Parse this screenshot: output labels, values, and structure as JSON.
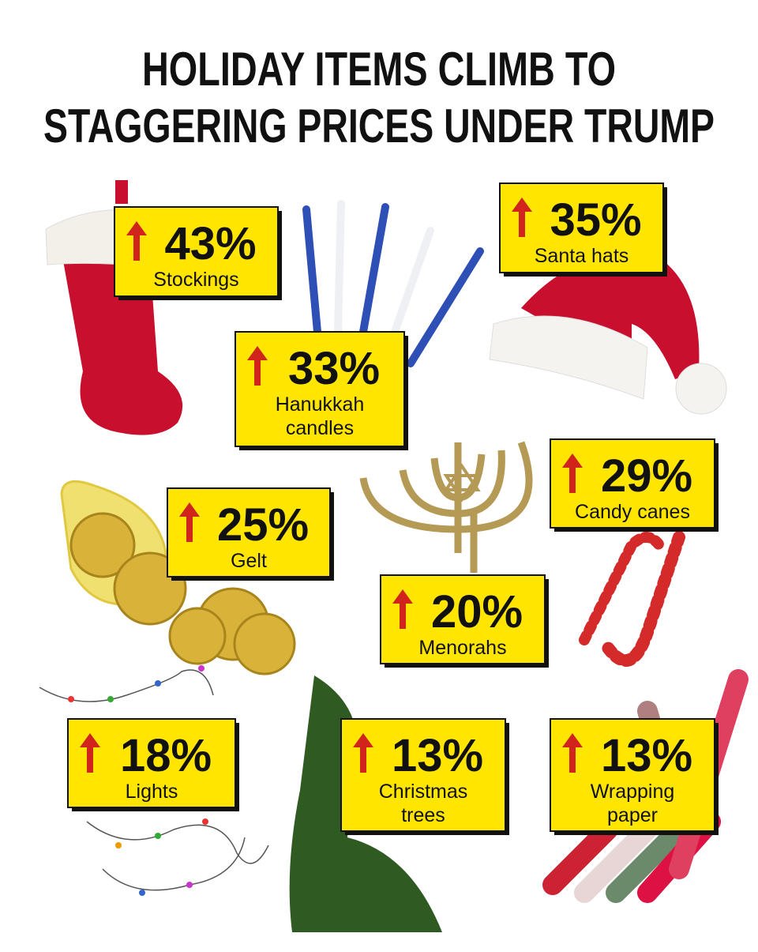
{
  "title": [
    "HOLIDAY ITEMS CLIMB TO",
    "STAGGERING PRICES UNDER TRUMP"
  ],
  "items": [
    {
      "value": "43%",
      "label": [
        "Stockings"
      ]
    },
    {
      "value": "35%",
      "label": [
        "Santa hats"
      ]
    },
    {
      "value": "33%",
      "label": [
        "Hanukkah",
        "candles"
      ]
    },
    {
      "value": "29%",
      "label": [
        "Candy canes"
      ]
    },
    {
      "value": "25%",
      "label": [
        "Gelt"
      ]
    },
    {
      "value": "20%",
      "label": [
        "Menorahs"
      ]
    },
    {
      "value": "18%",
      "label": [
        "Lights"
      ]
    },
    {
      "value": "13%",
      "label": [
        "Christmas",
        "trees"
      ]
    },
    {
      "value": "13%",
      "label": [
        "Wrapping",
        "paper"
      ]
    }
  ]
}
